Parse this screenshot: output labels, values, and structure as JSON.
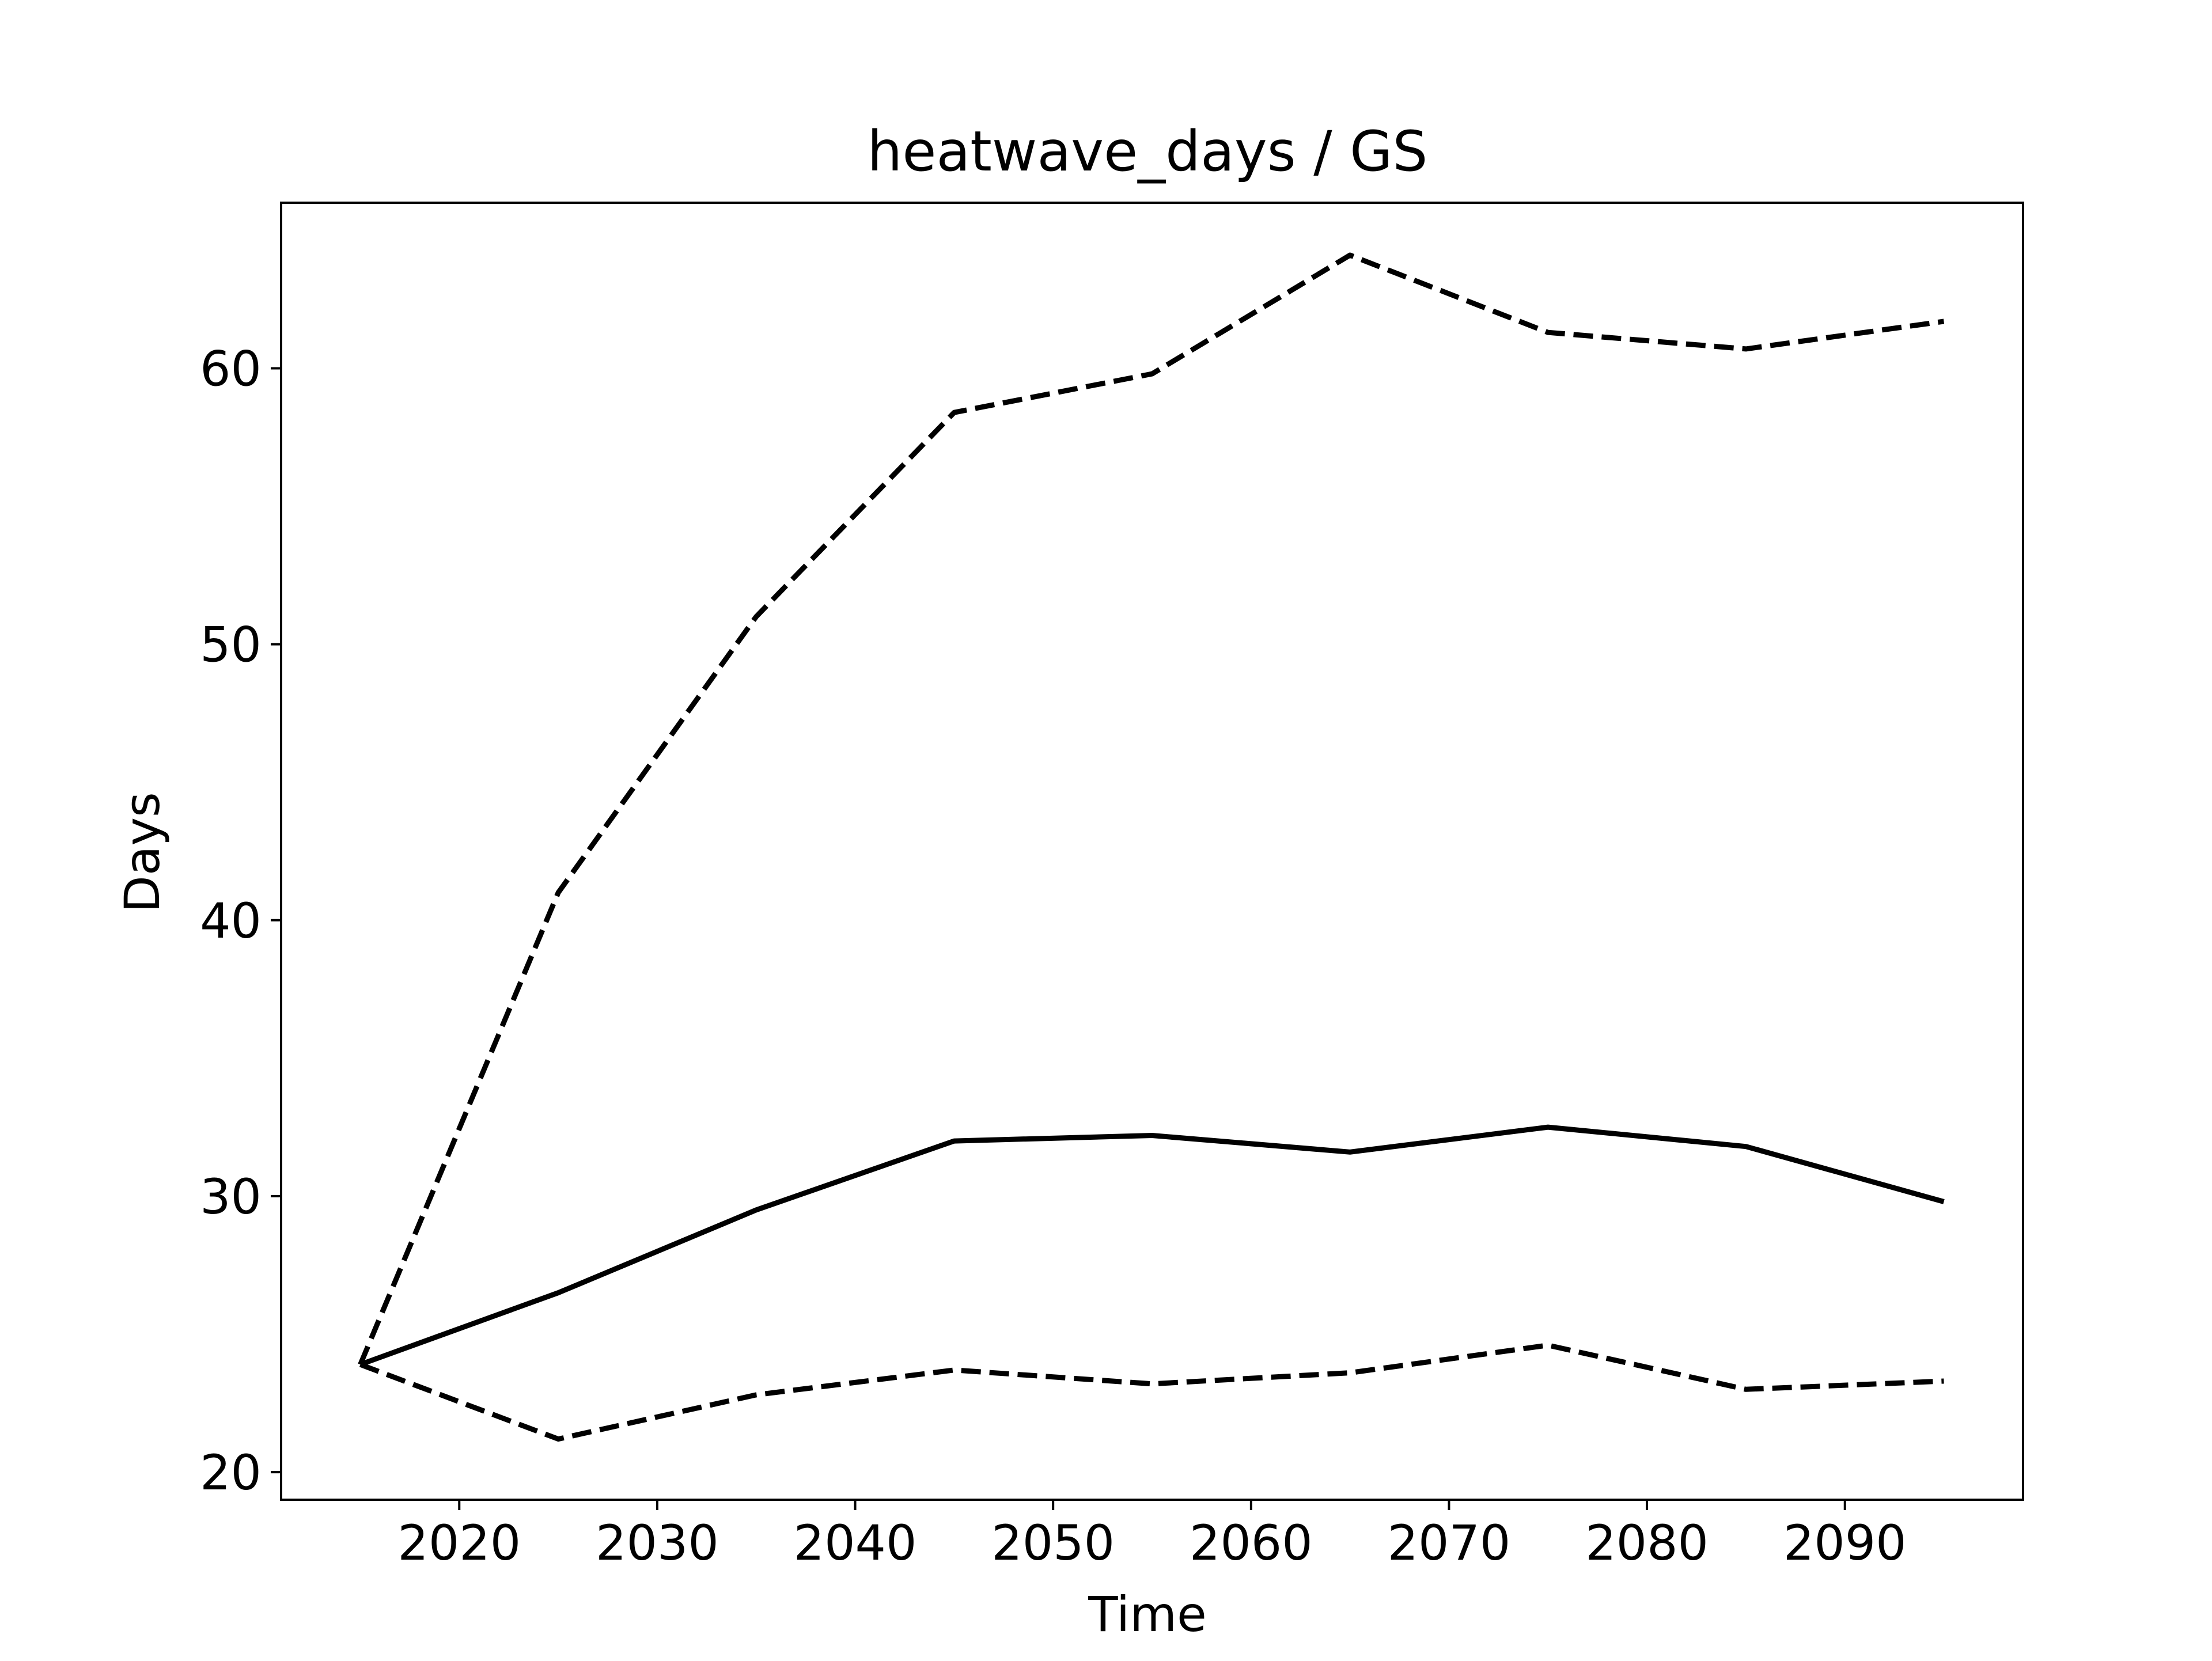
{
  "chart_data": {
    "type": "line",
    "title": "heatwave_days / GS",
    "xlabel": "Time",
    "ylabel": "Days",
    "xlim": [
      2011,
      2099
    ],
    "ylim": [
      19,
      66
    ],
    "xticks": [
      2020,
      2030,
      2040,
      2050,
      2060,
      2070,
      2080,
      2090
    ],
    "yticks": [
      20,
      30,
      40,
      50,
      60
    ],
    "grid": false,
    "legend": "none",
    "line_color": "#000000",
    "x": [
      2015,
      2025,
      2035,
      2045,
      2055,
      2065,
      2075,
      2085,
      2095
    ],
    "series": [
      {
        "style": "solid",
        "values": [
          23.9,
          26.5,
          29.5,
          32.0,
          32.2,
          31.6,
          32.5,
          31.8,
          29.8
        ]
      },
      {
        "style": "dashed",
        "values": [
          23.9,
          41.0,
          51.0,
          58.4,
          59.8,
          64.1,
          61.3,
          60.7,
          61.7
        ]
      },
      {
        "style": "dashed",
        "values": [
          23.9,
          21.2,
          22.8,
          23.7,
          23.2,
          23.6,
          24.6,
          23.0,
          23.3
        ]
      }
    ]
  }
}
